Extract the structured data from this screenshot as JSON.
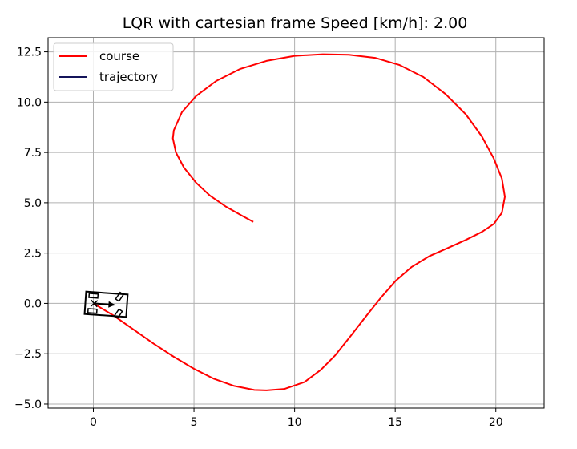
{
  "chart_data": {
    "type": "line",
    "title": "LQR with cartesian frame Speed [km/h]: 2.00",
    "xlabel": "",
    "ylabel": "",
    "xlim": [
      -2.25,
      22.4
    ],
    "ylim": [
      -5.2,
      13.2
    ],
    "grid": true,
    "legend_position": "top-left",
    "x_ticks": [
      0,
      5,
      10,
      15,
      20
    ],
    "x_tick_labels": [
      "0",
      "5",
      "10",
      "15",
      "20"
    ],
    "y_ticks": [
      -5.0,
      -2.5,
      0.0,
      2.5,
      5.0,
      7.5,
      10.0,
      12.5
    ],
    "y_tick_labels": [
      "−5.0",
      "−2.5",
      "0.0",
      "2.5",
      "5.0",
      "7.5",
      "10.0",
      "12.5"
    ],
    "series": [
      {
        "name": "course",
        "color": "#ff0000",
        "points": [
          [
            0.0,
            0.0
          ],
          [
            1.0,
            -0.6
          ],
          [
            2.0,
            -1.3
          ],
          [
            3.0,
            -2.0
          ],
          [
            4.0,
            -2.65
          ],
          [
            5.0,
            -3.25
          ],
          [
            6.0,
            -3.75
          ],
          [
            7.0,
            -4.1
          ],
          [
            8.0,
            -4.3
          ],
          [
            8.6,
            -4.32
          ],
          [
            9.5,
            -4.25
          ],
          [
            10.5,
            -3.9
          ],
          [
            11.3,
            -3.3
          ],
          [
            12.0,
            -2.6
          ],
          [
            12.8,
            -1.6
          ],
          [
            13.5,
            -0.7
          ],
          [
            14.3,
            0.3
          ],
          [
            15.0,
            1.1
          ],
          [
            15.8,
            1.8
          ],
          [
            16.7,
            2.35
          ],
          [
            17.6,
            2.75
          ],
          [
            18.5,
            3.15
          ],
          [
            19.3,
            3.55
          ],
          [
            19.9,
            3.95
          ],
          [
            20.3,
            4.5
          ],
          [
            20.45,
            5.3
          ],
          [
            20.3,
            6.2
          ],
          [
            19.9,
            7.2
          ],
          [
            19.3,
            8.3
          ],
          [
            18.5,
            9.4
          ],
          [
            17.5,
            10.4
          ],
          [
            16.4,
            11.25
          ],
          [
            15.2,
            11.85
          ],
          [
            14.0,
            12.2
          ],
          [
            12.7,
            12.35
          ],
          [
            11.4,
            12.38
          ],
          [
            10.0,
            12.3
          ],
          [
            8.6,
            12.05
          ],
          [
            7.3,
            11.65
          ],
          [
            6.1,
            11.05
          ],
          [
            5.1,
            10.3
          ],
          [
            4.4,
            9.5
          ],
          [
            4.0,
            8.6
          ],
          [
            3.95,
            8.2
          ],
          [
            4.1,
            7.5
          ],
          [
            4.5,
            6.75
          ],
          [
            5.1,
            6.0
          ],
          [
            5.8,
            5.35
          ],
          [
            6.6,
            4.8
          ],
          [
            7.4,
            4.35
          ],
          [
            7.95,
            4.05
          ]
        ]
      },
      {
        "name": "trajectory",
        "color": "#14145a",
        "points": [
          [
            0.0,
            0.0
          ],
          [
            0.01,
            0.0
          ]
        ]
      }
    ],
    "vehicle": {
      "x": 0.0,
      "y": 0.0,
      "yaw_deg": -4
    }
  }
}
